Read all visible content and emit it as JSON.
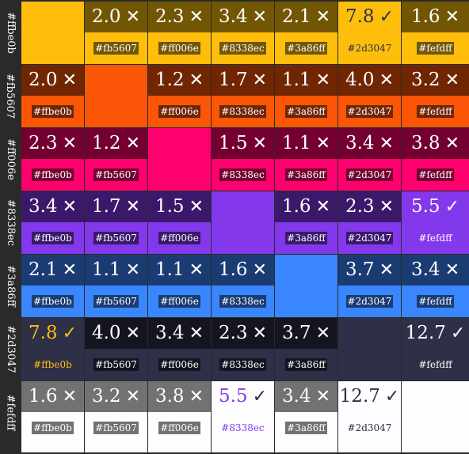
{
  "colors": [
    "#ffbe0b",
    "#fb5607",
    "#ff006e",
    "#8338ec",
    "#3a86ff",
    "#2d3047",
    "#fefdff"
  ],
  "row_labels": [
    "#ffbe0b",
    "#fb5607",
    "#ff006e",
    "#8338ec",
    "#3a86ff",
    "#2d3047",
    "#fefdff"
  ],
  "ratios": [
    [
      null,
      "2.0",
      "2.3",
      "3.4",
      "2.1",
      "7.8",
      "1.6"
    ],
    [
      "2.0",
      null,
      "1.2",
      "1.7",
      "1.1",
      "4.0",
      "3.2"
    ],
    [
      "2.3",
      "1.2",
      null,
      "1.5",
      "1.1",
      "3.4",
      "3.8"
    ],
    [
      "3.4",
      "1.7",
      "1.5",
      null,
      "1.6",
      "2.3",
      "5.5"
    ],
    [
      "2.1",
      "1.1",
      "1.1",
      "1.6",
      null,
      "3.7",
      "3.4"
    ],
    [
      "7.8",
      "4.0",
      "3.4",
      "2.3",
      "3.7",
      null,
      "12.7"
    ],
    [
      "1.6",
      "3.2",
      "3.8",
      "5.5",
      "3.4",
      "12.7",
      null
    ]
  ],
  "pass_symbol": "✓",
  "fail_symbol": "✕"
}
